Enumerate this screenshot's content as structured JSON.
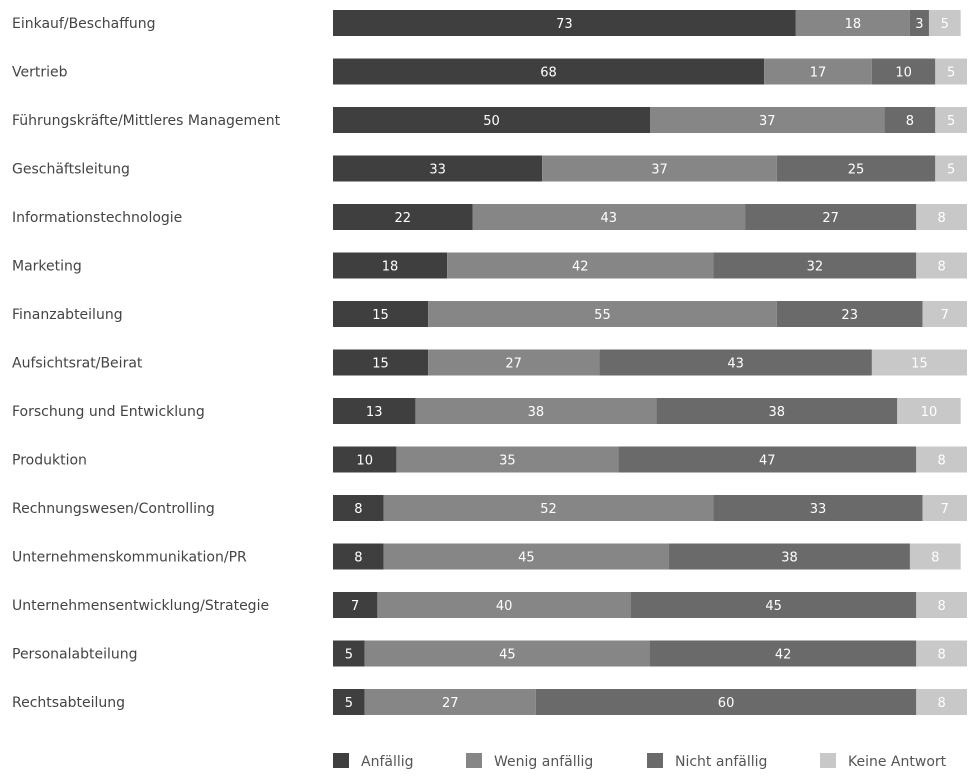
{
  "chart_data": {
    "type": "bar",
    "orientation": "horizontal",
    "stacked": true,
    "title": "",
    "xlabel": "",
    "ylabel": "",
    "xlim": [
      0,
      100
    ],
    "grid": false,
    "legend_position": "bottom-right",
    "categories": [
      "Einkauf/Beschaffung",
      "Vertrieb",
      "Führungskräfte/Mittleres Management",
      "Geschäftsleitung",
      "Informationstechnologie",
      "Marketing",
      "Finanzabteilung",
      "Aufsichtsrat/Beirat",
      "Forschung und Entwicklung",
      "Produktion",
      "Rechnungswesen/Controlling",
      "Unternehmenskommunikation/PR",
      "Unternehmensentwicklung/Strategie",
      "Personalabteilung",
      "Rechtsabteilung"
    ],
    "series": [
      {
        "name": "Anfällig",
        "color": "#3f3f3f",
        "values": [
          73,
          68,
          50,
          33,
          22,
          18,
          15,
          15,
          13,
          10,
          8,
          8,
          7,
          5,
          5
        ]
      },
      {
        "name": "Wenig anfällig",
        "color": "#868686",
        "values": [
          18,
          17,
          37,
          37,
          43,
          42,
          55,
          27,
          38,
          35,
          52,
          45,
          40,
          45,
          27
        ]
      },
      {
        "name": "Nicht anfällig",
        "color": "#6a6a6a",
        "values": [
          3,
          10,
          8,
          25,
          27,
          32,
          23,
          43,
          38,
          47,
          33,
          38,
          45,
          42,
          60
        ]
      },
      {
        "name": "Keine Antwort",
        "color": "#c8c8c8",
        "values": [
          5,
          5,
          5,
          5,
          8,
          8,
          7,
          15,
          10,
          8,
          7,
          8,
          8,
          8,
          8
        ]
      }
    ]
  }
}
